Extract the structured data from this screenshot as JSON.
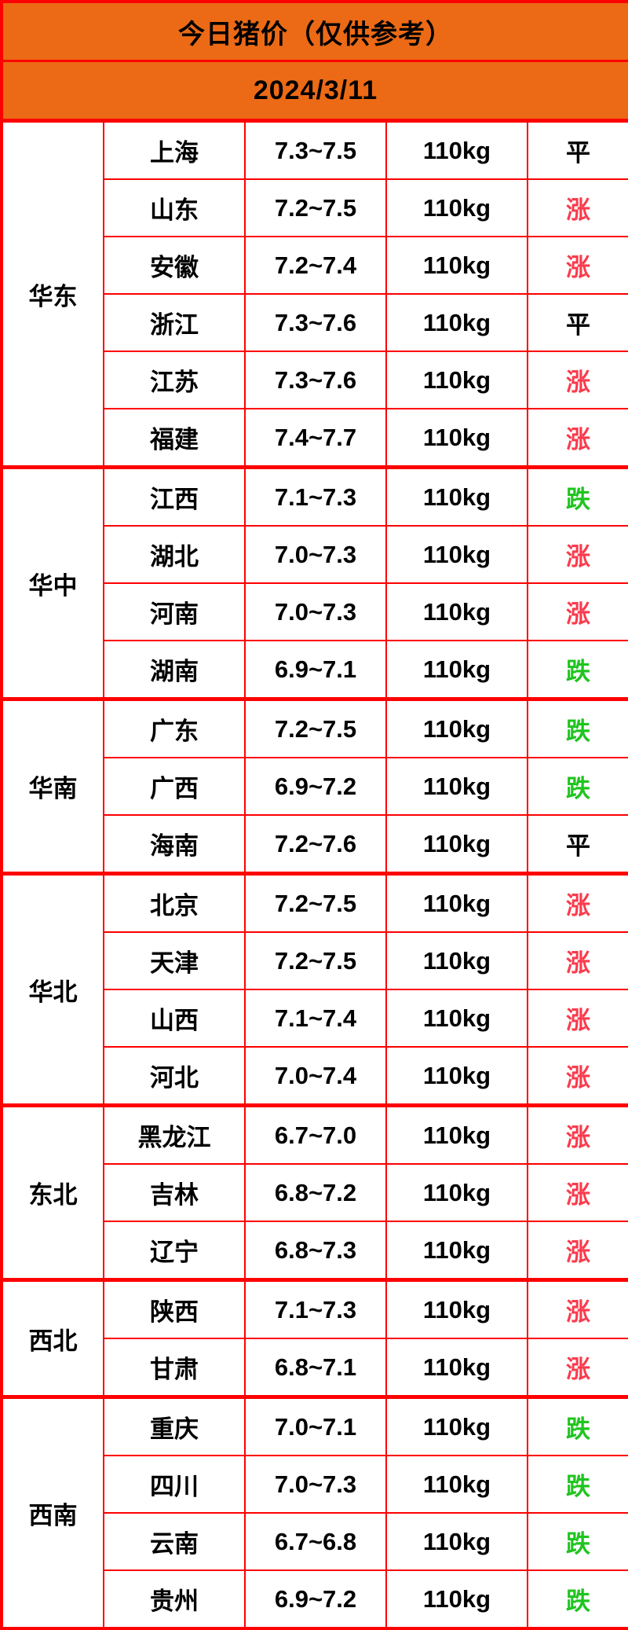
{
  "header": {
    "title": "今日猪价（仅供参考）",
    "date": "2024/3/11"
  },
  "colors": {
    "header_bg": "#EC6A16",
    "grid_border": "#FE0000",
    "trend_up": "#FA3B4D",
    "trend_down": "#1FC41F",
    "trend_flat": "#000000"
  },
  "regions": [
    {
      "name": "华东",
      "rows": [
        {
          "province": "上海",
          "price": "7.3~7.5",
          "weight": "110kg",
          "trend": "平",
          "trend_type": "flat"
        },
        {
          "province": "山东",
          "price": "7.2~7.5",
          "weight": "110kg",
          "trend": "涨",
          "trend_type": "up"
        },
        {
          "province": "安徽",
          "price": "7.2~7.4",
          "weight": "110kg",
          "trend": "涨",
          "trend_type": "up"
        },
        {
          "province": "浙江",
          "price": "7.3~7.6",
          "weight": "110kg",
          "trend": "平",
          "trend_type": "flat"
        },
        {
          "province": "江苏",
          "price": "7.3~7.6",
          "weight": "110kg",
          "trend": "涨",
          "trend_type": "up"
        },
        {
          "province": "福建",
          "price": "7.4~7.7",
          "weight": "110kg",
          "trend": "涨",
          "trend_type": "up"
        }
      ]
    },
    {
      "name": "华中",
      "rows": [
        {
          "province": "江西",
          "price": "7.1~7.3",
          "weight": "110kg",
          "trend": "跌",
          "trend_type": "down"
        },
        {
          "province": "湖北",
          "price": "7.0~7.3",
          "weight": "110kg",
          "trend": "涨",
          "trend_type": "up"
        },
        {
          "province": "河南",
          "price": "7.0~7.3",
          "weight": "110kg",
          "trend": "涨",
          "trend_type": "up"
        },
        {
          "province": "湖南",
          "price": "6.9~7.1",
          "weight": "110kg",
          "trend": "跌",
          "trend_type": "down"
        }
      ]
    },
    {
      "name": "华南",
      "rows": [
        {
          "province": "广东",
          "price": "7.2~7.5",
          "weight": "110kg",
          "trend": "跌",
          "trend_type": "down"
        },
        {
          "province": "广西",
          "price": "6.9~7.2",
          "weight": "110kg",
          "trend": "跌",
          "trend_type": "down"
        },
        {
          "province": "海南",
          "price": "7.2~7.6",
          "weight": "110kg",
          "trend": "平",
          "trend_type": "flat"
        }
      ]
    },
    {
      "name": "华北",
      "rows": [
        {
          "province": "北京",
          "price": "7.2~7.5",
          "weight": "110kg",
          "trend": "涨",
          "trend_type": "up"
        },
        {
          "province": "天津",
          "price": "7.2~7.5",
          "weight": "110kg",
          "trend": "涨",
          "trend_type": "up"
        },
        {
          "province": "山西",
          "price": "7.1~7.4",
          "weight": "110kg",
          "trend": "涨",
          "trend_type": "up"
        },
        {
          "province": "河北",
          "price": "7.0~7.4",
          "weight": "110kg",
          "trend": "涨",
          "trend_type": "up"
        }
      ]
    },
    {
      "name": "东北",
      "rows": [
        {
          "province": "黑龙江",
          "price": "6.7~7.0",
          "weight": "110kg",
          "trend": "涨",
          "trend_type": "up"
        },
        {
          "province": "吉林",
          "price": "6.8~7.2",
          "weight": "110kg",
          "trend": "涨",
          "trend_type": "up"
        },
        {
          "province": "辽宁",
          "price": "6.8~7.3",
          "weight": "110kg",
          "trend": "涨",
          "trend_type": "up"
        }
      ]
    },
    {
      "name": "西北",
      "rows": [
        {
          "province": "陕西",
          "price": "7.1~7.3",
          "weight": "110kg",
          "trend": "涨",
          "trend_type": "up"
        },
        {
          "province": "甘肃",
          "price": "6.8~7.1",
          "weight": "110kg",
          "trend": "涨",
          "trend_type": "up"
        }
      ]
    },
    {
      "name": "西南",
      "rows": [
        {
          "province": "重庆",
          "price": "7.0~7.1",
          "weight": "110kg",
          "trend": "跌",
          "trend_type": "down"
        },
        {
          "province": "四川",
          "price": "7.0~7.3",
          "weight": "110kg",
          "trend": "跌",
          "trend_type": "down"
        },
        {
          "province": "云南",
          "price": "6.7~6.8",
          "weight": "110kg",
          "trend": "跌",
          "trend_type": "down"
        },
        {
          "province": "贵州",
          "price": "6.9~7.2",
          "weight": "110kg",
          "trend": "跌",
          "trend_type": "down"
        }
      ]
    }
  ],
  "chart_data": {
    "type": "table",
    "title": "今日猪价（仅供参考）",
    "date": "2024/3/11",
    "columns": [
      "region",
      "province",
      "price_range_yuan_per_jin",
      "weight",
      "trend"
    ],
    "rows": [
      [
        "华东",
        "上海",
        "7.3~7.5",
        "110kg",
        "平"
      ],
      [
        "华东",
        "山东",
        "7.2~7.5",
        "110kg",
        "涨"
      ],
      [
        "华东",
        "安徽",
        "7.2~7.4",
        "110kg",
        "涨"
      ],
      [
        "华东",
        "浙江",
        "7.3~7.6",
        "110kg",
        "平"
      ],
      [
        "华东",
        "江苏",
        "7.3~7.6",
        "110kg",
        "涨"
      ],
      [
        "华东",
        "福建",
        "7.4~7.7",
        "110kg",
        "涨"
      ],
      [
        "华中",
        "江西",
        "7.1~7.3",
        "110kg",
        "跌"
      ],
      [
        "华中",
        "湖北",
        "7.0~7.3",
        "110kg",
        "涨"
      ],
      [
        "华中",
        "河南",
        "7.0~7.3",
        "110kg",
        "涨"
      ],
      [
        "华中",
        "湖南",
        "6.9~7.1",
        "110kg",
        "跌"
      ],
      [
        "华南",
        "广东",
        "7.2~7.5",
        "110kg",
        "跌"
      ],
      [
        "华南",
        "广西",
        "6.9~7.2",
        "110kg",
        "跌"
      ],
      [
        "华南",
        "海南",
        "7.2~7.6",
        "110kg",
        "平"
      ],
      [
        "华北",
        "北京",
        "7.2~7.5",
        "110kg",
        "涨"
      ],
      [
        "华北",
        "天津",
        "7.2~7.5",
        "110kg",
        "涨"
      ],
      [
        "华北",
        "山西",
        "7.1~7.4",
        "110kg",
        "涨"
      ],
      [
        "华北",
        "河北",
        "7.0~7.4",
        "110kg",
        "涨"
      ],
      [
        "东北",
        "黑龙江",
        "6.7~7.0",
        "110kg",
        "涨"
      ],
      [
        "东北",
        "吉林",
        "6.8~7.2",
        "110kg",
        "涨"
      ],
      [
        "东北",
        "辽宁",
        "6.8~7.3",
        "110kg",
        "涨"
      ],
      [
        "西北",
        "陕西",
        "7.1~7.3",
        "110kg",
        "涨"
      ],
      [
        "西北",
        "甘肃",
        "6.8~7.1",
        "110kg",
        "涨"
      ],
      [
        "西南",
        "重庆",
        "7.0~7.1",
        "110kg",
        "跌"
      ],
      [
        "西南",
        "四川",
        "7.0~7.3",
        "110kg",
        "跌"
      ],
      [
        "西南",
        "云南",
        "6.7~6.8",
        "110kg",
        "跌"
      ],
      [
        "西南",
        "贵州",
        "6.9~7.2",
        "110kg",
        "跌"
      ]
    ]
  }
}
